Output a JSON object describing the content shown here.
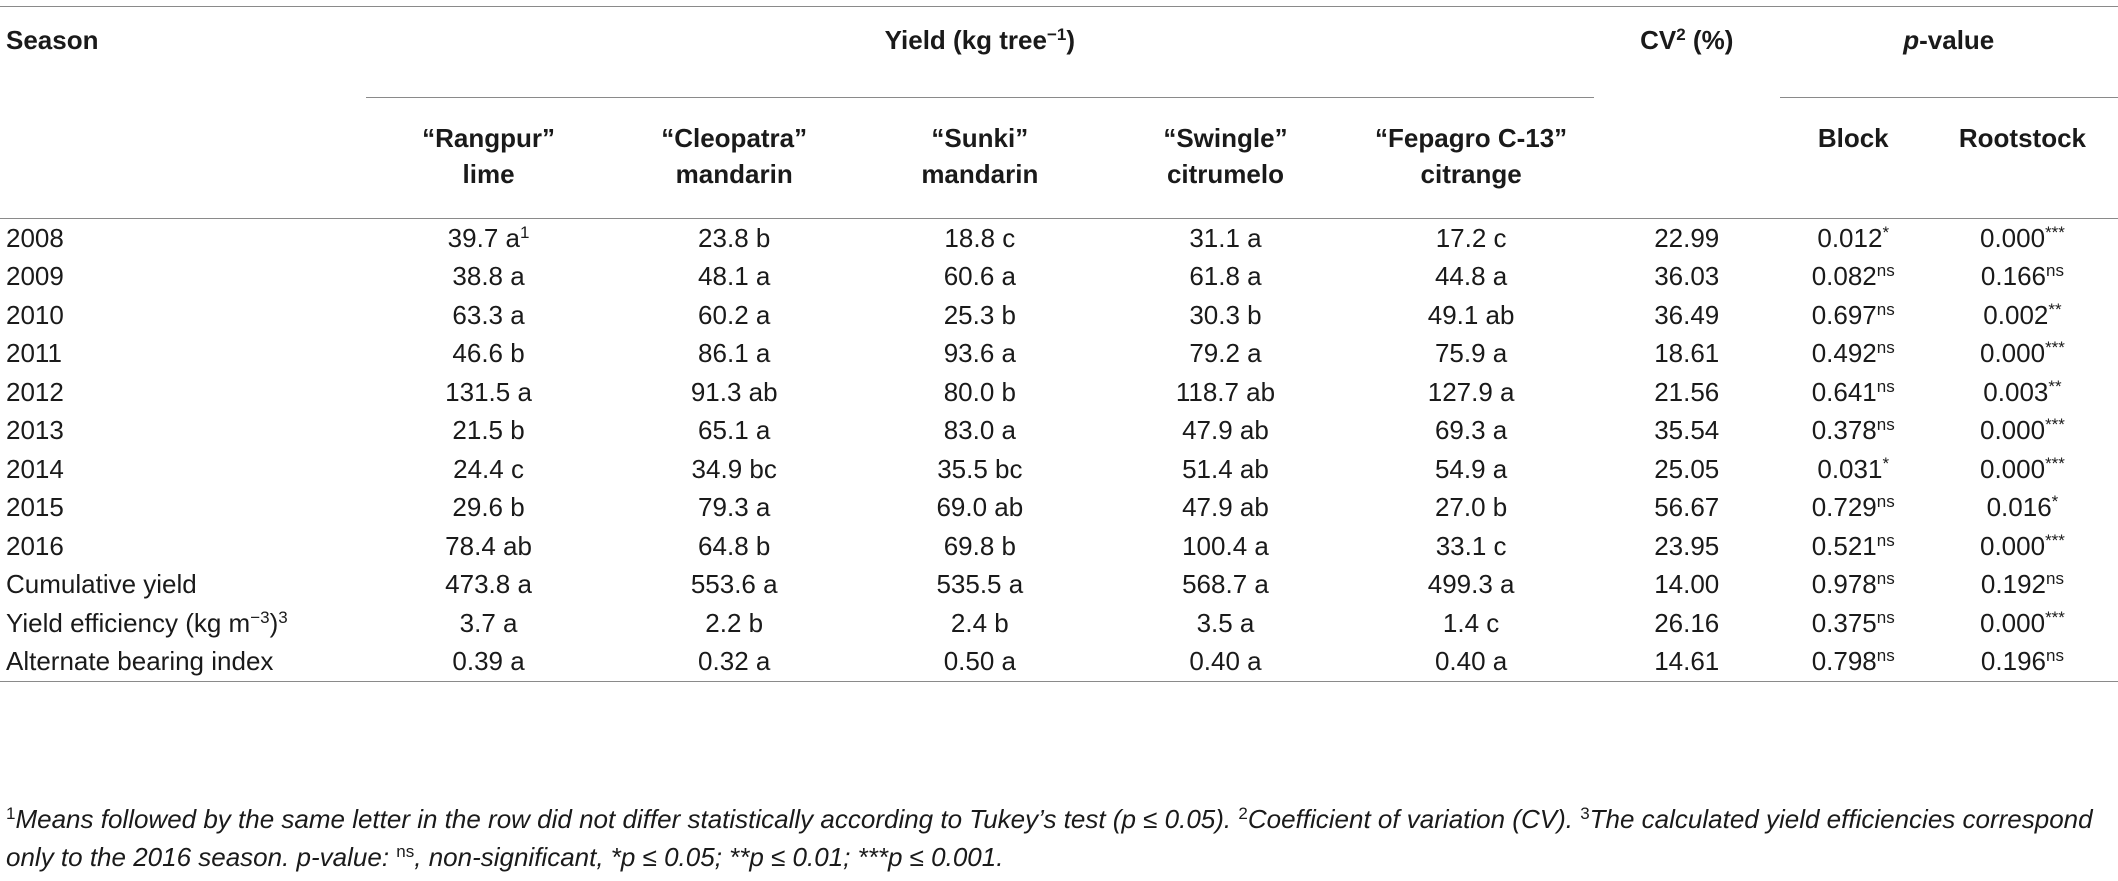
{
  "header": {
    "season": "Season",
    "yield": "Yield (kg tree",
    "yield_sup": "−1",
    "yield_close": ")",
    "cv": "CV",
    "cv_sup": "2",
    "cv_unit": " (%)",
    "pvalue_p": "p",
    "pvalue_rest": "-value",
    "rootstocks": [
      "“Rangpur” lime",
      "“Cleopatra” mandarin",
      "“Sunki” mandarin",
      "“Swingle” citrumelo",
      "“Fepagro C-13” citrange"
    ],
    "block": "Block",
    "rootstock": "Rootstock"
  },
  "rows": [
    {
      "season": "2008",
      "v": [
        "39.7 a",
        "23.8 b",
        "18.8 c",
        "31.1 a",
        "17.2 c"
      ],
      "v0_sup": "1",
      "cv": "22.99",
      "block": "0.012",
      "block_sup": "*",
      "root": "0.000",
      "root_sup": "***"
    },
    {
      "season": "2009",
      "v": [
        "38.8 a",
        "48.1 a",
        "60.6 a",
        "61.8 a",
        "44.8 a"
      ],
      "cv": "36.03",
      "block": "0.082",
      "block_sup": "ns",
      "root": "0.166",
      "root_sup": "ns"
    },
    {
      "season": "2010",
      "v": [
        "63.3 a",
        "60.2 a",
        "25.3 b",
        "30.3 b",
        "49.1 ab"
      ],
      "cv": "36.49",
      "block": "0.697",
      "block_sup": "ns",
      "root": "0.002",
      "root_sup": "**"
    },
    {
      "season": "2011",
      "v": [
        "46.6 b",
        "86.1 a",
        "93.6 a",
        "79.2 a",
        "75.9 a"
      ],
      "cv": "18.61",
      "block": "0.492",
      "block_sup": "ns",
      "root": "0.000",
      "root_sup": "***"
    },
    {
      "season": "2012",
      "v": [
        "131.5 a",
        "91.3 ab",
        "80.0 b",
        "118.7 ab",
        "127.9 a"
      ],
      "cv": "21.56",
      "block": "0.641",
      "block_sup": "ns",
      "root": "0.003",
      "root_sup": "**"
    },
    {
      "season": "2013",
      "v": [
        "21.5 b",
        "65.1 a",
        "83.0 a",
        "47.9 ab",
        "69.3 a"
      ],
      "cv": "35.54",
      "block": "0.378",
      "block_sup": "ns",
      "root": "0.000",
      "root_sup": "***"
    },
    {
      "season": "2014",
      "v": [
        "24.4 c",
        "34.9 bc",
        "35.5 bc",
        "51.4 ab",
        "54.9 a"
      ],
      "cv": "25.05",
      "block": "0.031",
      "block_sup": "*",
      "root": "0.000",
      "root_sup": "***"
    },
    {
      "season": "2015",
      "v": [
        "29.6 b",
        "79.3 a",
        "69.0 ab",
        "47.9 ab",
        "27.0 b"
      ],
      "cv": "56.67",
      "block": "0.729",
      "block_sup": "ns",
      "root": "0.016",
      "root_sup": "*"
    },
    {
      "season": "2016",
      "v": [
        "78.4 ab",
        "64.8 b",
        "69.8 b",
        "100.4 a",
        "33.1 c"
      ],
      "cv": "23.95",
      "block": "0.521",
      "block_sup": "ns",
      "root": "0.000",
      "root_sup": "***"
    },
    {
      "season": "Cumulative yield",
      "v": [
        "473.8 a",
        "553.6 a",
        "535.5 a",
        "568.7 a",
        "499.3 a"
      ],
      "cv": "14.00",
      "block": "0.978",
      "block_sup": "ns",
      "root": "0.192",
      "root_sup": "ns"
    },
    {
      "season": "Yield efficiency (kg m",
      "season_sup": "−3",
      "season_close": ")",
      "season_sup2": "3",
      "v": [
        "3.7 a",
        "2.2 b",
        "2.4 b",
        "3.5 a",
        "1.4 c"
      ],
      "cv": "26.16",
      "block": "0.375",
      "block_sup": "ns",
      "root": "0.000",
      "root_sup": "***"
    },
    {
      "season": "Alternate bearing index",
      "v": [
        "0.39 a",
        "0.32 a",
        "0.50 a",
        "0.40 a",
        "0.40 a"
      ],
      "cv": "14.61",
      "block": "0.798",
      "block_sup": "ns",
      "root": "0.196",
      "root_sup": "ns"
    }
  ],
  "footnote": {
    "s1": "1",
    "t1": "Means followed by the same letter in the row did not differ statistically according to Tukey’s test (p ≤ 0.05). ",
    "s2": "2",
    "t2": "Coefficient of variation (CV). ",
    "s3": "3",
    "t3": "The calculated yield efficiencies correspond only to the 2016 season. p-value: ",
    "sns": "ns",
    "t4": ", non-significant, *p ≤ 0.05; **p ≤ 0.01; ***p ≤ 0.001."
  }
}
